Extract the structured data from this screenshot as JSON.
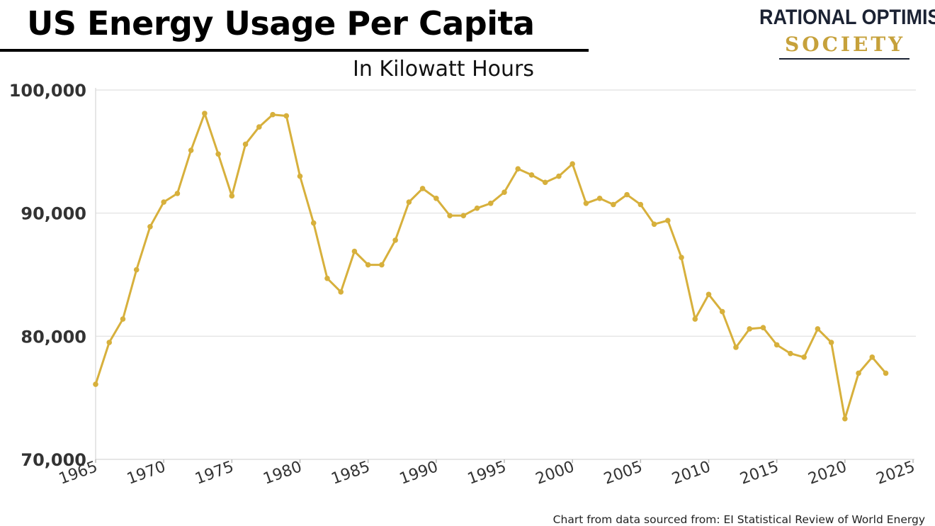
{
  "header": {
    "title": "US Energy Usage Per Capita",
    "subtitle": "In Kilowatt Hours"
  },
  "logo": {
    "line1": "RATIONAL OPTIMIST",
    "line2": "SOCIETY"
  },
  "footer": {
    "source": "Chart from data sourced from: EI Statistical Review of World Energy"
  },
  "colors": {
    "series": "#d7b03c",
    "grid": "#e6e6e6",
    "axis": "#dddddd"
  },
  "chart_data": {
    "type": "line",
    "title": "US Energy Usage Per Capita",
    "subtitle": "In Kilowatt Hours",
    "xlim": [
      1965,
      2025
    ],
    "ylim": [
      70000,
      100000
    ],
    "x_ticks": [
      1965,
      1970,
      1975,
      1980,
      1985,
      1990,
      1995,
      2000,
      2005,
      2010,
      2015,
      2020,
      2025
    ],
    "x_tick_labels": [
      "1965",
      "1970",
      "1975",
      "1980",
      "1985",
      "1990",
      "1995",
      "2000",
      "2005",
      "2010",
      "2015",
      "2020",
      "2025"
    ],
    "y_ticks": [
      70000,
      80000,
      90000,
      100000
    ],
    "y_tick_labels": [
      "70,000",
      "80,000",
      "90,000",
      "100,000"
    ],
    "grid": true,
    "series": [
      {
        "x": [
          1965,
          1966,
          1967,
          1968,
          1969,
          1970,
          1971,
          1972,
          1973,
          1974,
          1975,
          1976,
          1977,
          1978,
          1979,
          1980,
          1981,
          1982,
          1983,
          1984,
          1985,
          1986,
          1987,
          1988,
          1989,
          1990,
          1991,
          1992,
          1993,
          1994,
          1995,
          1996,
          1997,
          1998,
          1999,
          2000,
          2001,
          2002,
          2003,
          2004,
          2005,
          2006,
          2007,
          2008,
          2009,
          2010,
          2011,
          2012,
          2013,
          2014,
          2015,
          2016,
          2017,
          2018,
          2019,
          2020,
          2021,
          2022,
          2023
        ],
        "values": [
          76100,
          79500,
          81400,
          85400,
          88900,
          90900,
          91600,
          95100,
          98100,
          94800,
          91400,
          95600,
          97000,
          98000,
          97900,
          93000,
          89200,
          84700,
          83600,
          86900,
          85800,
          85800,
          87800,
          90900,
          92000,
          91200,
          89800,
          89800,
          90400,
          90800,
          91700,
          93600,
          93100,
          92500,
          93000,
          94000,
          90800,
          91200,
          90700,
          91500,
          90700,
          89100,
          89400,
          86400,
          81400,
          83400,
          82000,
          79100,
          80600,
          80700,
          79300,
          78600,
          78300,
          80600,
          79500,
          73300,
          77000,
          78300,
          77000
        ]
      }
    ]
  }
}
